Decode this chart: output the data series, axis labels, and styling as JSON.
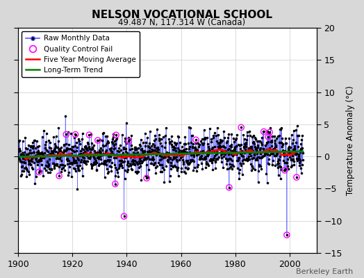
{
  "title": "NELSON VOCATIONAL SCHOOL",
  "subtitle": "49.487 N, 117.314 W (Canada)",
  "ylabel_right": "Temperature Anomaly (°C)",
  "attribution": "Berkeley Earth",
  "xlim": [
    1900,
    2010
  ],
  "ylim": [
    -15,
    20
  ],
  "yticks": [
    -15,
    -10,
    -5,
    0,
    5,
    10,
    15,
    20
  ],
  "xticks": [
    1900,
    1920,
    1940,
    1960,
    1980,
    2000
  ],
  "fig_bg_color": "#d8d8d8",
  "plot_bg_color": "#ffffff",
  "raw_line_color": "#5555ff",
  "raw_marker_color": "black",
  "qc_fail_color": "magenta",
  "moving_avg_color": "red",
  "trend_color": "green",
  "seed": 42,
  "n_months": 1260,
  "start_year": 1900,
  "trend_slope": 0.006,
  "noise_std": 1.6,
  "qc_fail_main_indices": [
    468,
    1188
  ],
  "qc_fail_main_values": [
    -9.3,
    -12.2
  ],
  "n_extra_qc": 18
}
